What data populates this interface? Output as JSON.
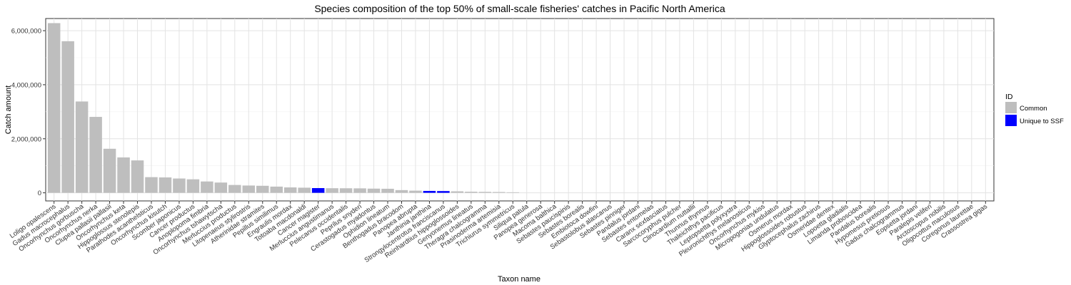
{
  "chart_data": {
    "type": "bar",
    "title": "Species composition of the top 50% of small-scale fisheries' catches in Pacific North America",
    "xlabel": "Taxon name",
    "ylabel": "Catch amount",
    "ylim": [
      -300000,
      6450000
    ],
    "yticks": [
      0,
      2000000,
      4000000,
      6000000
    ],
    "ytick_labels": [
      "0",
      "2,000,000",
      "4,000,000",
      "6,000,000"
    ],
    "grid": true,
    "legend": {
      "title": "ID",
      "placement": "right",
      "entries": [
        {
          "label": "Common",
          "color": "#bebebe"
        },
        {
          "label": "Unique to SSF",
          "color": "#0000ff"
        }
      ]
    },
    "colors": {
      "Common": "#bebebe",
      "Unique to SSF": "#0000ff"
    },
    "categories": [
      "Loligo opalescens",
      "Gadus macrocephalus",
      "Oncorhynchus gorbuscha",
      "Oncorhynchus nerka",
      "Clupea pallasii pallasii",
      "Oncorhynchus keta",
      "Hippoglossus stenolepis",
      "Parathodes acanthelsticus",
      "Oncorhynchus kisutch",
      "Scomber japonicus",
      "Cancer productus",
      "Anoplopoma fimbria",
      "Oncorhynchus tshawytscha",
      "Merluccius productus",
      "Litopenaeus stylirostris",
      "Atherinidae stramites",
      "Pepillus similimus",
      "Engraulis mordax",
      "Totoaba macdonaldi",
      "Cancer magister",
      "Merluccius angustimanus",
      "Pelecanus occidentalis",
      "Peprilus snyderi",
      "Cerastogadus myadontus",
      "Ophidion lineatum",
      "Benthogadus bracodom",
      "Panopea abrupta",
      "Janthinia janthina",
      "Strongylocentrotus franciscanus",
      "Reinhardtius hippoglossoides",
      "Genyonemus lineatus",
      "Theragra chalcogramma",
      "Prasinoderma artemisia",
      "Trichiurus symmetricus",
      "Siliqua patula",
      "Panopea generosa",
      "Macoma balthica",
      "Sebastes paucispinis",
      "Sebastes borealis",
      "Embiotoca dowfini",
      "Sebastolobus alascanus",
      "Sebastes pinniger",
      "Pandalus jordani",
      "Sebastes entomelas",
      "Caranx sexfasciatus",
      "Sarcocoryphus pulcher",
      "Clinocardium nuttallii",
      "Thunnus thynnus",
      "Thaleichthys pacificus",
      "Leptopsetta polyxystra",
      "Pleuronichthys melanosticus",
      "Oncorhynchus mykiss",
      "Micropogonias undulatus",
      "Osmerus mordax",
      "Hippoglossoides robustus",
      "Glyptocephalus zachirus",
      "Osmeridae dentex",
      "Lopoetta gladialis",
      "Limanda proboscidea",
      "Pandalus borealis",
      "Hypomesus pretiosus",
      "Gadus chalcogrammus",
      "Eopsetta jordani",
      "Paralepis veliferi",
      "Arctoscopus nobilis",
      "Oligocottus maculosus",
      "Coregonus laurettae",
      "Crassostrea gigas"
    ],
    "values": [
      6280000,
      5610000,
      3380000,
      2810000,
      1630000,
      1310000,
      1200000,
      580000,
      570000,
      530000,
      500000,
      420000,
      380000,
      290000,
      270000,
      260000,
      230000,
      200000,
      190000,
      175000,
      170000,
      168000,
      165000,
      155000,
      150000,
      100000,
      80000,
      70000,
      65000,
      55000,
      40000,
      35000,
      30000,
      20000,
      0,
      0,
      0,
      0,
      0,
      0,
      0,
      0,
      0,
      0,
      0,
      0,
      0,
      0,
      0,
      0,
      0,
      0,
      0,
      0,
      0,
      0,
      0,
      0,
      0,
      0,
      0,
      0,
      0,
      0,
      0,
      0,
      0,
      0
    ],
    "groups": [
      "Common",
      "Common",
      "Common",
      "Common",
      "Common",
      "Common",
      "Common",
      "Common",
      "Common",
      "Common",
      "Common",
      "Common",
      "Common",
      "Common",
      "Common",
      "Common",
      "Common",
      "Common",
      "Common",
      "Unique to SSF",
      "Common",
      "Common",
      "Common",
      "Common",
      "Common",
      "Common",
      "Common",
      "Unique to SSF",
      "Unique to SSF",
      "Common",
      "Common",
      "Common",
      "Common",
      "Common",
      "Common",
      "Common",
      "Common",
      "Common",
      "Common",
      "Common",
      "Common",
      "Common",
      "Common",
      "Common",
      "Common",
      "Common",
      "Common",
      "Common",
      "Common",
      "Common",
      "Common",
      "Common",
      "Common",
      "Common",
      "Common",
      "Common",
      "Common",
      "Common",
      "Common",
      "Common",
      "Common",
      "Common",
      "Common",
      "Common",
      "Common",
      "Common",
      "Common",
      "Common"
    ]
  }
}
